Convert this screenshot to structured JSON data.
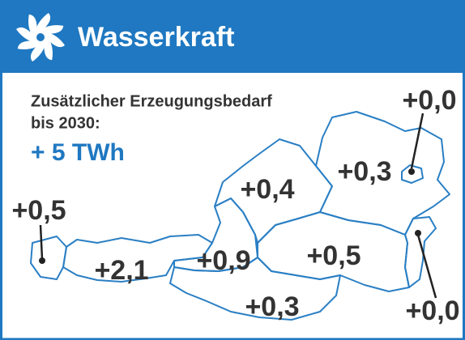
{
  "header": {
    "title": "Wasserkraft"
  },
  "subtitle_lines": [
    "Zusätzlicher Erzeugungsbedarf",
    "bis 2030:"
  ],
  "total": "+ 5 TWh",
  "regions": [
    {
      "label": "+0,0"
    },
    {
      "label": "+0,3"
    },
    {
      "label": "+0,4"
    },
    {
      "label": "+0,5"
    },
    {
      "label": "+2,1"
    },
    {
      "label": "+0,9"
    },
    {
      "label": "+0,5"
    },
    {
      "label": "+0,3"
    },
    {
      "label": "+0,0"
    }
  ]
}
